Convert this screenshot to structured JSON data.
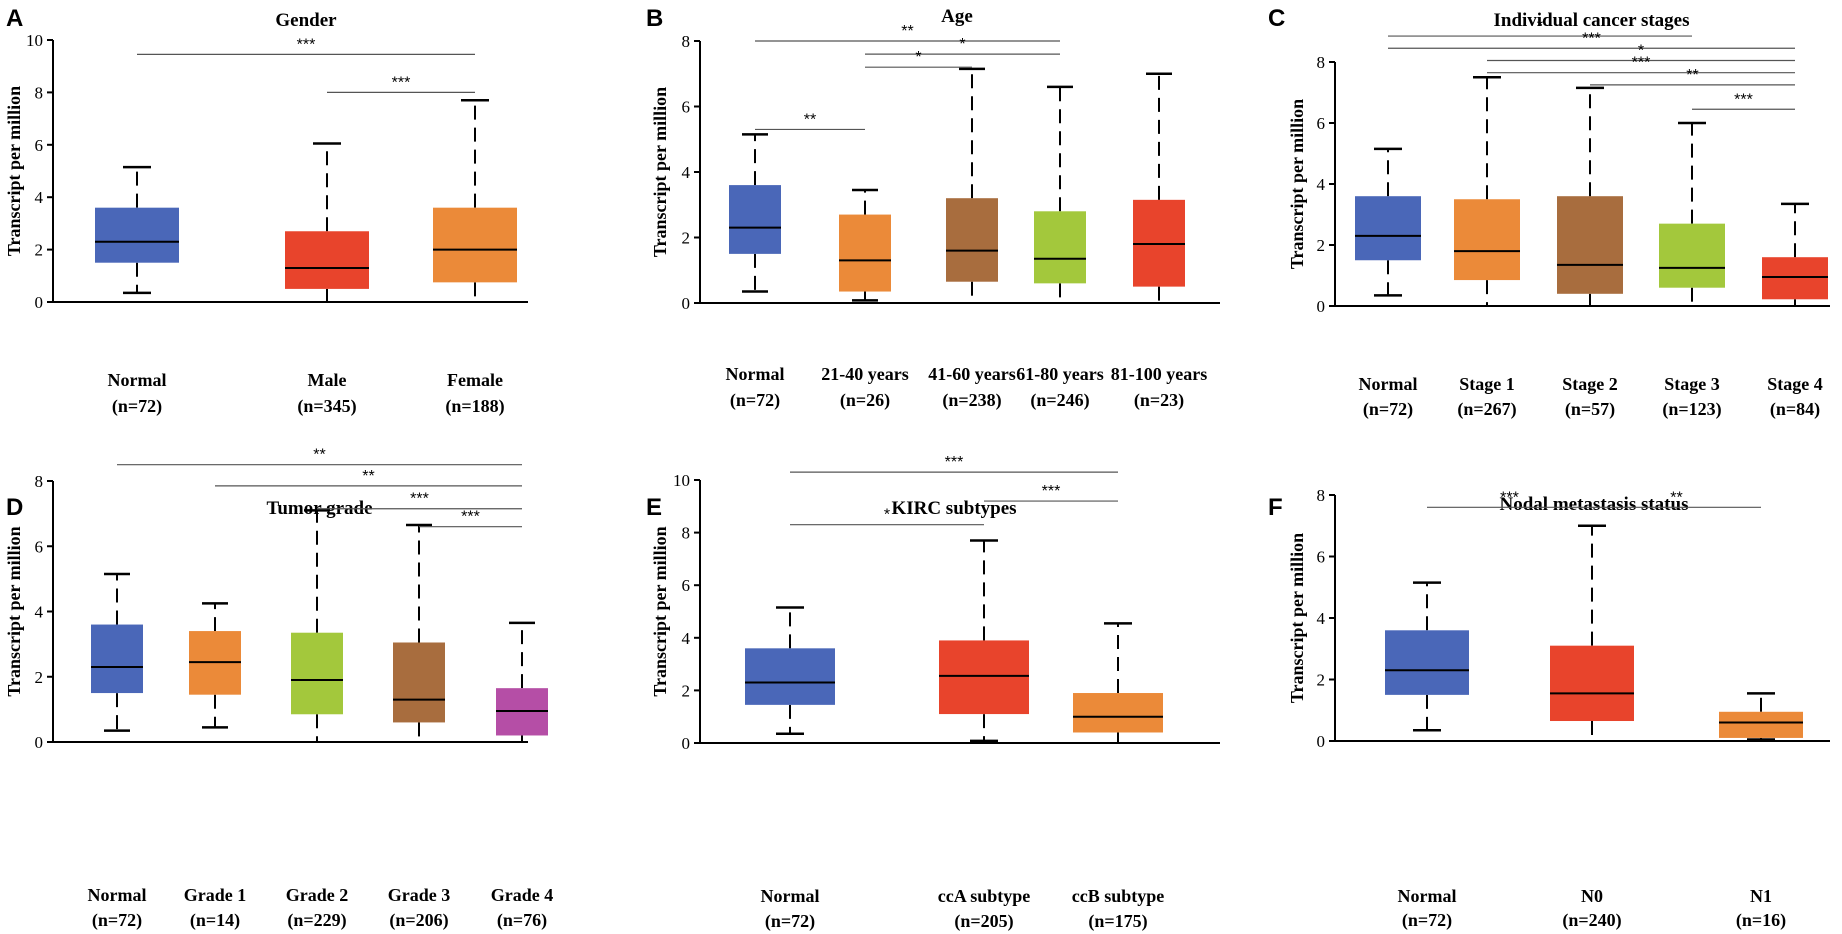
{
  "figure": {
    "name": "TPM expression boxplots across KIRC clinical subgroups"
  },
  "chart_data": [
    {
      "panel": "A",
      "type": "box",
      "title": "Gender",
      "ylabel": "Transcript per million",
      "ylim": [
        0,
        10
      ],
      "yticks": [
        "0",
        "2",
        "4",
        "6",
        "8",
        "10"
      ],
      "groups": [
        {
          "name": "Normal",
          "n": "(n=72)",
          "color": "#4a67b8",
          "min": 0.35,
          "q1": 1.5,
          "median": 2.3,
          "q3": 3.6,
          "max": 5.15
        },
        {
          "name": "Male",
          "n": "(n=345)",
          "color": "#e8442c",
          "min": 0.0,
          "q1": 0.5,
          "median": 1.3,
          "q3": 2.7,
          "max": 6.05
        },
        {
          "name": "Female",
          "n": "(n=188)",
          "color": "#eb8a39",
          "min": 0.0,
          "q1": 0.75,
          "median": 2.0,
          "q3": 3.6,
          "max": 7.7
        }
      ],
      "significance": [
        {
          "from": 0,
          "to": 2,
          "label": "***",
          "y": 9.45
        },
        {
          "from": 1,
          "to": 2,
          "label": "***",
          "y": 8.0
        }
      ]
    },
    {
      "panel": "B",
      "type": "box",
      "title": "Age",
      "ylabel": "Transcript per million",
      "ylim": [
        0,
        8
      ],
      "yticks": [
        "0",
        "2",
        "4",
        "6",
        "8"
      ],
      "groups": [
        {
          "name": "Normal",
          "n": "(n=72)",
          "color": "#4a67b8",
          "min": 0.35,
          "q1": 1.5,
          "median": 2.3,
          "q3": 3.6,
          "max": 5.15
        },
        {
          "name": "21-40 years",
          "n": "(n=26)",
          "color": "#eb8a39",
          "min": 0.08,
          "q1": 0.35,
          "median": 1.3,
          "q3": 2.7,
          "max": 3.45
        },
        {
          "name": "41-60 years",
          "n": "(n=238)",
          "color": "#a86d3e",
          "min": 0.0,
          "q1": 0.65,
          "median": 1.6,
          "q3": 3.2,
          "max": 7.15
        },
        {
          "name": "61-80 years",
          "n": "(n=246)",
          "color": "#a3c83c",
          "min": 0.0,
          "q1": 0.6,
          "median": 1.35,
          "q3": 2.8,
          "max": 6.6
        },
        {
          "name": "81-100 years",
          "n": "(n=23)",
          "color": "#e8442c",
          "min": 0.0,
          "q1": 0.5,
          "median": 1.8,
          "q3": 3.15,
          "max": 7.0
        }
      ],
      "significance": [
        {
          "from": 0,
          "to": 3,
          "label": "**",
          "y": 8.0
        },
        {
          "from": 1,
          "to": 3,
          "label": "*",
          "y": 7.6
        },
        {
          "from": 1,
          "to": 2,
          "label": "*",
          "y": 7.2
        },
        {
          "from": 0,
          "to": 1,
          "label": "**",
          "y": 5.3
        }
      ]
    },
    {
      "panel": "C",
      "type": "box",
      "title": "Individual cancer stages",
      "ylabel": "Transcript per million",
      "ylim": [
        0,
        8
      ],
      "yticks": [
        "0",
        "2",
        "4",
        "6",
        "8"
      ],
      "groups": [
        {
          "name": "Normal",
          "n": "(n=72)",
          "color": "#4a67b8",
          "min": 0.35,
          "q1": 1.5,
          "median": 2.3,
          "q3": 3.6,
          "max": 5.15
        },
        {
          "name": "Stage 1",
          "n": "(n=267)",
          "color": "#eb8a39",
          "min": 0.0,
          "q1": 0.85,
          "median": 1.8,
          "q3": 3.5,
          "max": 7.5
        },
        {
          "name": "Stage 2",
          "n": "(n=57)",
          "color": "#a86d3e",
          "min": 0.0,
          "q1": 0.4,
          "median": 1.35,
          "q3": 3.6,
          "max": 7.15
        },
        {
          "name": "Stage 3",
          "n": "(n=123)",
          "color": "#a3c83c",
          "min": 0.0,
          "q1": 0.6,
          "median": 1.25,
          "q3": 2.7,
          "max": 6.0
        },
        {
          "name": "Stage 4",
          "n": "(n=84)",
          "color": "#e8442c",
          "min": 0.0,
          "q1": 0.22,
          "median": 0.95,
          "q3": 1.6,
          "max": 3.35
        }
      ],
      "significance": [
        {
          "from": 0,
          "to": 3,
          "label": "*",
          "y": 8.85
        },
        {
          "from": 0,
          "to": 4,
          "label": "***",
          "y": 8.45
        },
        {
          "from": 1,
          "to": 4,
          "label": "*",
          "y": 8.05
        },
        {
          "from": 1,
          "to": 4,
          "label": "***",
          "y": 7.65
        },
        {
          "from": 2,
          "to": 4,
          "label": "**",
          "y": 7.25
        },
        {
          "from": 3,
          "to": 4,
          "label": "***",
          "y": 6.45
        }
      ]
    },
    {
      "panel": "D",
      "type": "box",
      "title": "Tumor grade",
      "ylabel": "Transcript per million",
      "ylim": [
        0,
        8
      ],
      "yticks": [
        "0",
        "2",
        "4",
        "6",
        "8"
      ],
      "groups": [
        {
          "name": "Normal",
          "n": "(n=72)",
          "color": "#4a67b8",
          "min": 0.35,
          "q1": 1.5,
          "median": 2.3,
          "q3": 3.6,
          "max": 5.15
        },
        {
          "name": "Grade 1",
          "n": "(n=14)",
          "color": "#eb8a39",
          "min": 0.45,
          "q1": 1.45,
          "median": 2.45,
          "q3": 3.4,
          "max": 4.25
        },
        {
          "name": "Grade 2",
          "n": "(n=229)",
          "color": "#a3c83c",
          "min": 0.0,
          "q1": 0.85,
          "median": 1.9,
          "q3": 3.35,
          "max": 7.1
        },
        {
          "name": "Grade 3",
          "n": "(n=206)",
          "color": "#a86d3e",
          "min": 0.0,
          "q1": 0.6,
          "median": 1.3,
          "q3": 3.05,
          "max": 6.65
        },
        {
          "name": "Grade 4",
          "n": "(n=76)",
          "color": "#b54ea6",
          "min": 0.0,
          "q1": 0.2,
          "median": 0.95,
          "q3": 1.65,
          "max": 3.65
        }
      ],
      "significance": [
        {
          "from": 0,
          "to": 4,
          "label": "**",
          "y": 8.5
        },
        {
          "from": 1,
          "to": 4,
          "label": "**",
          "y": 7.85
        },
        {
          "from": 2,
          "to": 4,
          "label": "***",
          "y": 7.15
        },
        {
          "from": 3,
          "to": 4,
          "label": "***",
          "y": 6.6
        }
      ]
    },
    {
      "panel": "E",
      "type": "box",
      "title": "KIRC subtypes",
      "ylabel": "Transcript per million",
      "ylim": [
        0,
        10
      ],
      "yticks": [
        "0",
        "2",
        "4",
        "6",
        "8",
        "10"
      ],
      "groups": [
        {
          "name": "Normal",
          "n": "(n=72)",
          "color": "#4a67b8",
          "min": 0.35,
          "q1": 1.45,
          "median": 2.3,
          "q3": 3.6,
          "max": 5.15
        },
        {
          "name": "ccA subtype",
          "n": "(n=205)",
          "color": "#e8442c",
          "min": 0.08,
          "q1": 1.1,
          "median": 2.55,
          "q3": 3.9,
          "max": 7.7
        },
        {
          "name": "ccB subtype",
          "n": "(n=175)",
          "color": "#eb8a39",
          "min": 0.0,
          "q1": 0.4,
          "median": 1.0,
          "q3": 1.9,
          "max": 4.55
        }
      ],
      "significance": [
        {
          "from": 0,
          "to": 2,
          "label": "***",
          "y": 10.3
        },
        {
          "from": 1,
          "to": 2,
          "label": "***",
          "y": 9.2
        },
        {
          "from": 0,
          "to": 1,
          "label": "*",
          "y": 8.3
        }
      ]
    },
    {
      "panel": "F",
      "type": "box",
      "title": "Nodal metastasis status",
      "ylabel": "Transcript per million",
      "ylim": [
        0,
        8
      ],
      "yticks": [
        "0",
        "2",
        "4",
        "6",
        "8"
      ],
      "groups": [
        {
          "name": "Normal",
          "n": "(n=72)",
          "color": "#4a67b8",
          "min": 0.35,
          "q1": 1.5,
          "median": 2.3,
          "q3": 3.6,
          "max": 5.15
        },
        {
          "name": "N0",
          "n": "(n=240)",
          "color": "#e8442c",
          "min": 0.0,
          "q1": 0.65,
          "median": 1.55,
          "q3": 3.1,
          "max": 7.0
        },
        {
          "name": "N1",
          "n": "(n=16)",
          "color": "#eb8a39",
          "min": 0.05,
          "q1": 0.1,
          "median": 0.6,
          "q3": 0.95,
          "max": 1.55
        }
      ],
      "significance": [
        {
          "from": 0,
          "to": 1,
          "label": "***",
          "y": 7.6
        },
        {
          "from": 1,
          "to": 2,
          "label": "**",
          "y": 7.6
        }
      ]
    }
  ]
}
